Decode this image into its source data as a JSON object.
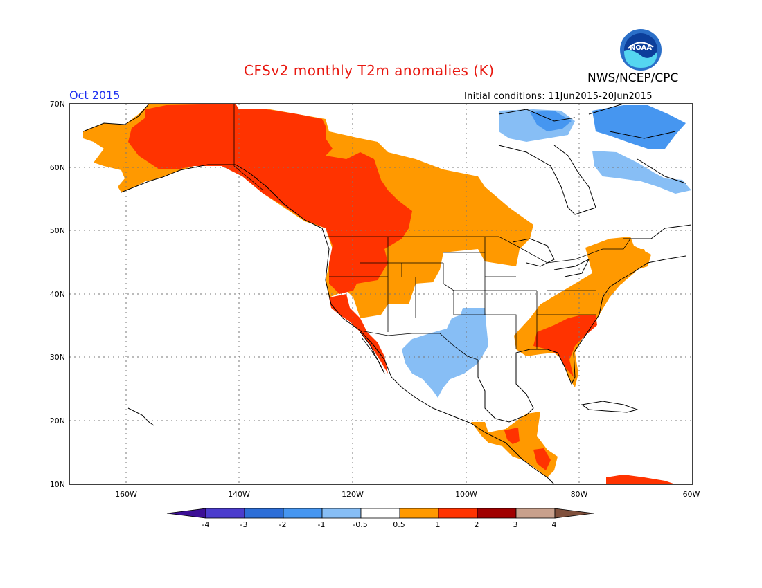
{
  "header": {
    "title": "CFSv2 monthly T2m anomalies (K)",
    "agency": "NWS/NCEP/CPC",
    "logo_text": "NOAA",
    "month": "Oct 2015",
    "initial_conditions": "Initial conditions: 11Jun2015-20Jun2015"
  },
  "map": {
    "lon_range": [
      -170,
      -60
    ],
    "lat_range": [
      10,
      70
    ],
    "lat_labels": [
      "10N",
      "20N",
      "30N",
      "40N",
      "50N",
      "60N",
      "70N"
    ],
    "lon_labels": [
      "160W",
      "140W",
      "120W",
      "100W",
      "80W",
      "60W"
    ],
    "regions": [
      {
        "name": "warm-west-core",
        "category": "1 to 2",
        "color": "#ff3300"
      },
      {
        "name": "warm-east",
        "category": "0.5 to 1",
        "color": "#ff9900"
      },
      {
        "name": "cool-southwest",
        "category": "-1 to -0.5",
        "color": "#87bef5"
      },
      {
        "name": "cool-arctic",
        "category": "-2 to -1",
        "color": "#4696f0"
      }
    ]
  },
  "colorbar": {
    "labels": [
      "-4",
      "-3",
      "-2",
      "-1",
      "-0.5",
      "0.5",
      "1",
      "2",
      "3",
      "4"
    ],
    "colors": [
      "#3c0f96",
      "#4b3ccd",
      "#2d6ed7",
      "#4696f0",
      "#87bef5",
      "#ffffff",
      "#ff9900",
      "#ff3300",
      "#a00000",
      "#c8a08c",
      "#80503c"
    ]
  }
}
